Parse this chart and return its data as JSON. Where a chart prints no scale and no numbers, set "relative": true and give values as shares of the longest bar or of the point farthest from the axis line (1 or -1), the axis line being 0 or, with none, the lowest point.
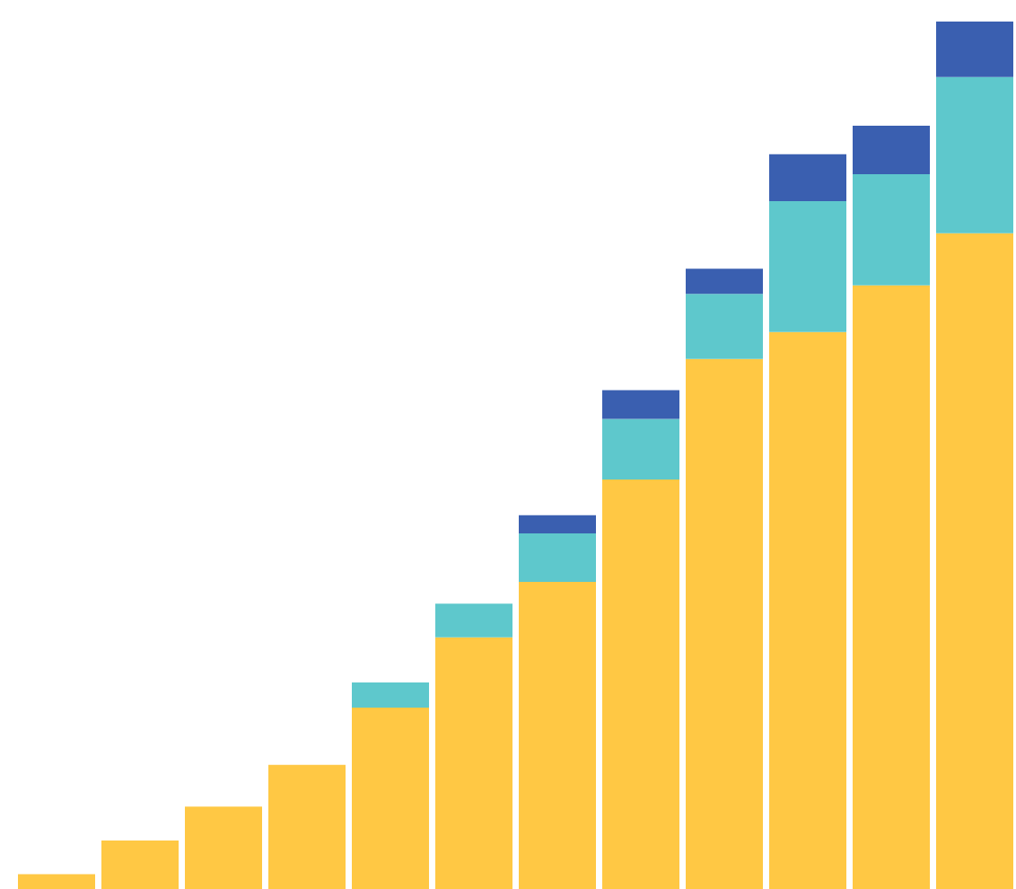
{
  "chart_data": {
    "type": "bar",
    "relative": true,
    "stacked": true,
    "categories": [
      null,
      null,
      null,
      null,
      null,
      null,
      null,
      null,
      null,
      null,
      null,
      null
    ],
    "series": [
      {
        "color": "#ffc844",
        "values": [
          0.017,
          0.056,
          0.095,
          0.143,
          0.209,
          0.29,
          0.354,
          0.472,
          0.611,
          0.642,
          0.696,
          0.756
        ]
      },
      {
        "color": "#5ec8cc",
        "values": [
          null,
          null,
          null,
          null,
          0.029,
          0.039,
          0.056,
          0.07,
          0.075,
          0.151,
          0.128,
          0.18
        ]
      },
      {
        "color": "#3a5fb0",
        "values": [
          null,
          null,
          null,
          null,
          null,
          null,
          0.021,
          0.033,
          0.029,
          0.054,
          0.056,
          0.064
        ]
      }
    ]
  }
}
